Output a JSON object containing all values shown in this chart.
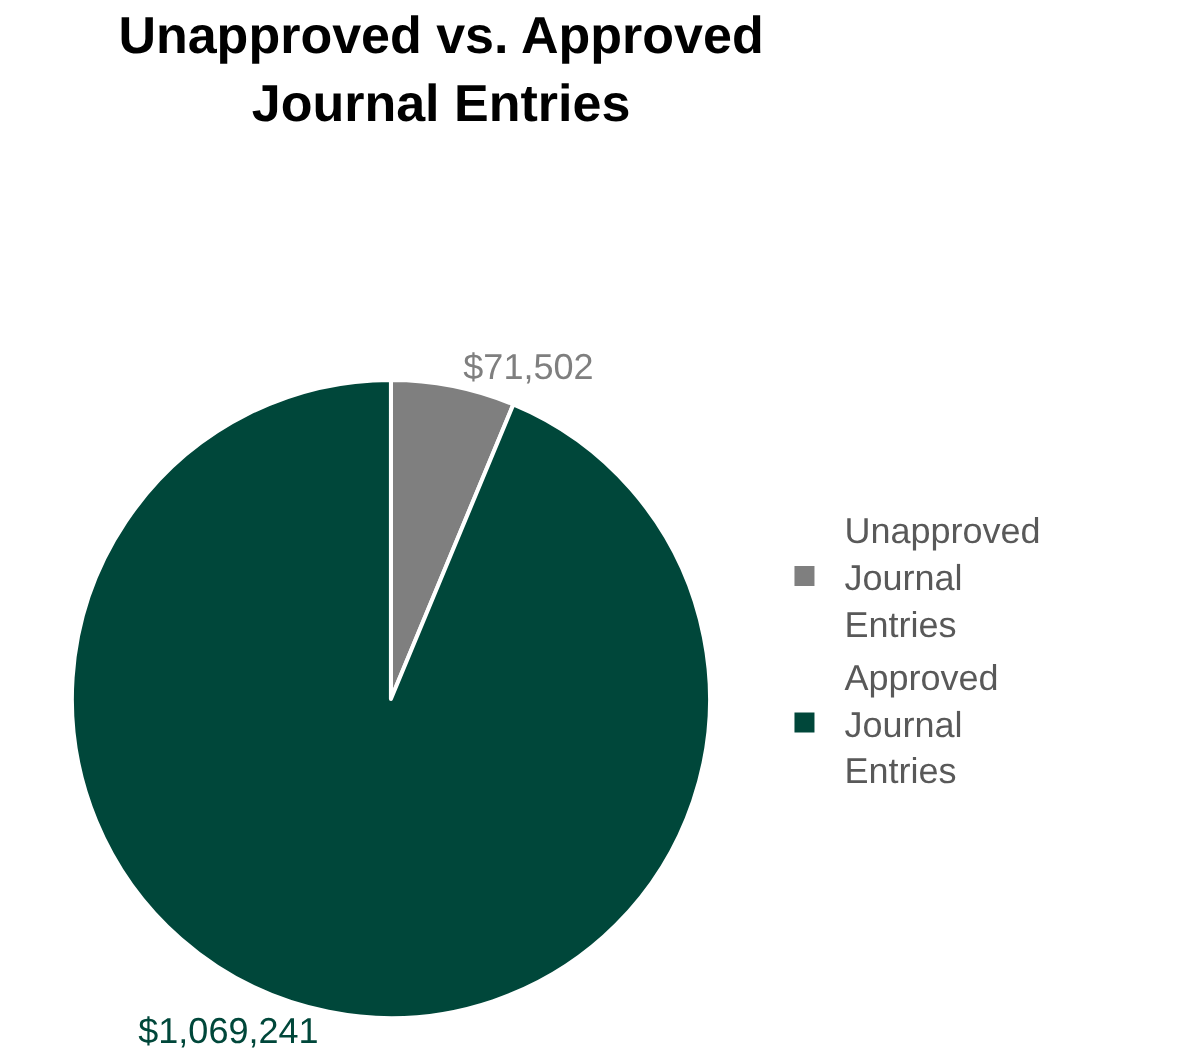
{
  "chart_data": {
    "type": "pie",
    "title": "Unapproved vs. Approved Journal Entries",
    "categories": [
      "Unapproved Journal Entries",
      "Approved Journal Entries"
    ],
    "values": [
      71502,
      1069241
    ],
    "colors": [
      "#7f7f7f",
      "#00473a"
    ],
    "value_labels": [
      "$71,502",
      "$1,069,241"
    ],
    "legend": "right"
  }
}
